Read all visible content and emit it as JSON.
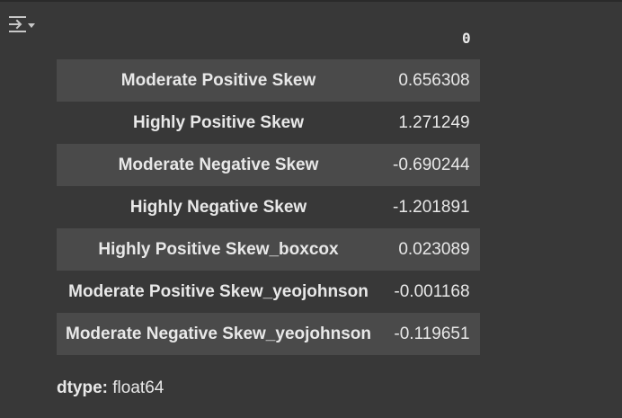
{
  "output": {
    "icon": "output-options-icon"
  },
  "series": {
    "column_header": "0",
    "rows": [
      {
        "index": "Moderate Positive Skew",
        "value": "0.656308"
      },
      {
        "index": "Highly Positive Skew",
        "value": "1.271249"
      },
      {
        "index": "Moderate Negative Skew",
        "value": "-0.690244"
      },
      {
        "index": "Highly Negative Skew",
        "value": "-1.201891"
      },
      {
        "index": "Highly Positive Skew_boxcox",
        "value": "0.023089"
      },
      {
        "index": "Moderate Positive Skew_yeojohnson",
        "value": "-0.001168"
      },
      {
        "index": "Moderate Negative Skew_yeojohnson",
        "value": "-0.119651"
      }
    ]
  },
  "dtype": {
    "label": "dtype:",
    "value": "float64"
  },
  "colors": {
    "background": "#383838",
    "row_stripe": "#4a4a4a",
    "text": "#e8e8e8"
  }
}
